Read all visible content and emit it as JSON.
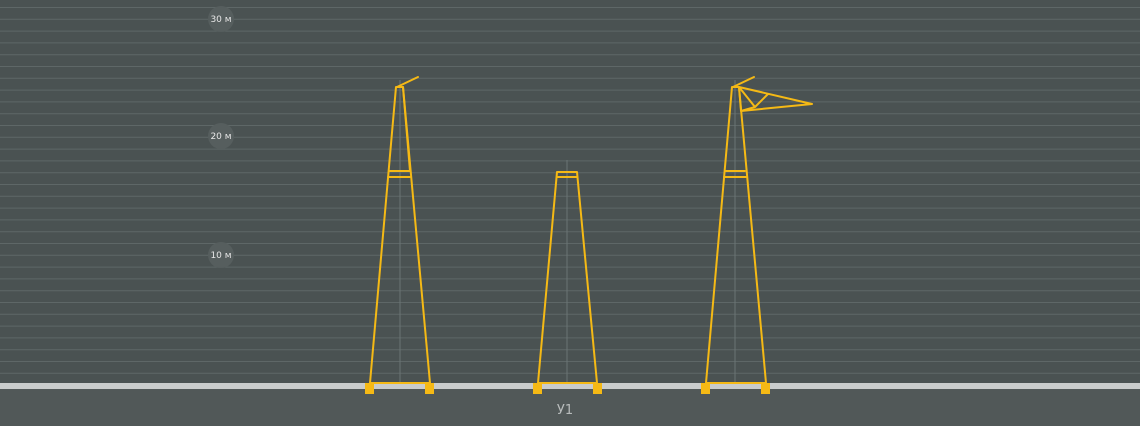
{
  "scale": {
    "labels": [
      "30 м",
      "20 м",
      "10 м"
    ]
  },
  "pylons": [
    {
      "name": "У1"
    }
  ],
  "colors": {
    "background": "#4a5252",
    "grid": "#5e6767",
    "ground": "#c9cccc",
    "structure": "#f5b915",
    "label": "#b8bcbc"
  }
}
